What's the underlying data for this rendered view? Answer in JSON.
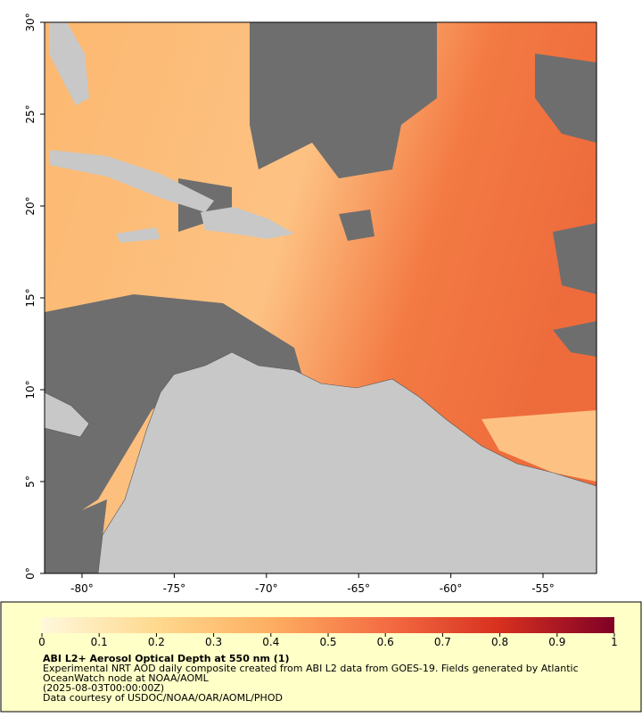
{
  "map": {
    "xlim": [
      -82.03,
      -52.1
    ],
    "ylim": [
      0,
      30
    ],
    "xticks": [
      {
        "value": -80,
        "label": "-80°"
      },
      {
        "value": -75,
        "label": "-75°"
      },
      {
        "value": -70,
        "label": "-70°"
      },
      {
        "value": -65,
        "label": "-65°"
      },
      {
        "value": -60,
        "label": "-60°"
      },
      {
        "value": -55,
        "label": "-55°"
      }
    ],
    "yticks": [
      {
        "value": 0,
        "label": "0°"
      },
      {
        "value": 5,
        "label": "5°"
      },
      {
        "value": 10,
        "label": "10°"
      },
      {
        "value": 15,
        "label": "15°"
      },
      {
        "value": 20,
        "label": "20°"
      },
      {
        "value": 25,
        "label": "25°"
      },
      {
        "value": 30,
        "label": "30°"
      }
    ]
  },
  "colorbar": {
    "range": [
      0,
      1
    ],
    "ticks": [
      0,
      0.1,
      0.2,
      0.3,
      0.4,
      0.5,
      0.6,
      0.7,
      0.8,
      0.9,
      1
    ]
  },
  "caption": {
    "title": "ABI L2+ Aerosol Optical Depth at 550 nm (1)",
    "lines": [
      "Experimental NRT AOD daily composite created from ABI L2 data from GOES-19. Fields generated by Atlantic",
      "OceanWatch node at NOAA/AOML",
      "(2025-08-03T00:00:00Z)",
      "Data courtesy of USDOC/NOAA/OAR/AOML/PHOD"
    ]
  }
}
